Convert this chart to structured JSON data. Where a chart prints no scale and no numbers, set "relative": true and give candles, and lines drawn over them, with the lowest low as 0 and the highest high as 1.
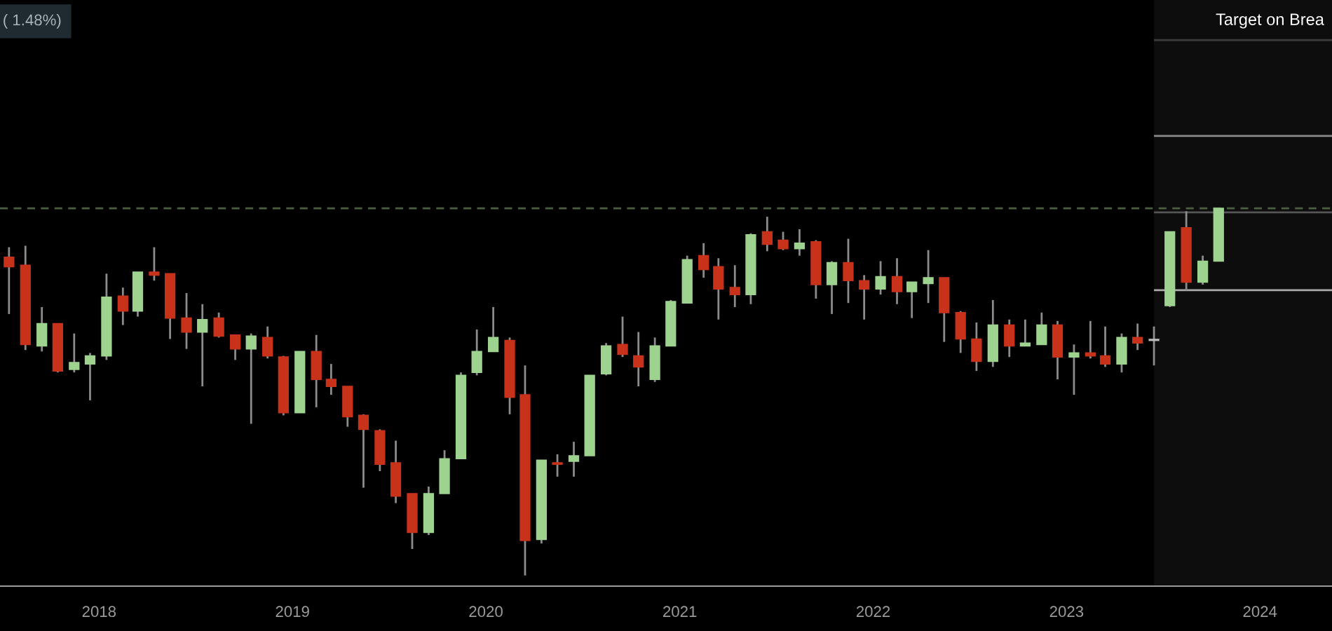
{
  "chart_data": {
    "type": "candlestick",
    "relative": true,
    "annotations": [
      "( 1.48%)"
    ],
    "x": [
      "2017-07-15",
      "2017-08-15",
      "2017-09-15",
      "2017-10-15",
      "2017-11-15",
      "2017-12-15",
      "2018-01-15",
      "2018-02-15",
      "2018-03-15",
      "2018-04-15",
      "2018-05-15",
      "2018-06-15",
      "2018-07-15",
      "2018-08-15",
      "2018-09-15",
      "2018-10-15",
      "2018-11-15",
      "2018-12-15",
      "2019-01-15",
      "2019-02-15",
      "2019-03-15",
      "2019-04-15",
      "2019-05-15",
      "2019-06-15",
      "2019-07-15",
      "2019-08-15",
      "2019-09-15",
      "2019-10-15",
      "2019-11-15",
      "2019-12-15",
      "2020-01-15",
      "2020-02-15",
      "2020-03-15",
      "2020-04-15",
      "2020-05-15",
      "2020-06-15",
      "2020-07-15",
      "2020-08-15",
      "2020-09-15",
      "2020-10-15",
      "2020-11-15",
      "2020-12-15",
      "2021-01-15",
      "2021-02-15",
      "2021-03-15",
      "2021-04-15",
      "2021-05-15",
      "2021-06-15",
      "2021-07-15",
      "2021-08-15",
      "2021-09-15",
      "2021-10-15",
      "2021-11-15",
      "2021-12-15",
      "2022-01-15",
      "2022-02-15",
      "2022-03-15",
      "2022-04-15",
      "2022-05-15",
      "2022-06-15",
      "2022-07-15",
      "2022-08-15",
      "2022-09-15",
      "2022-10-15",
      "2022-11-15",
      "2022-12-15",
      "2023-01-15",
      "2023-02-15",
      "2023-03-15",
      "2023-04-15",
      "2023-05-15",
      "2023-06-15",
      "2023-07-15",
      "2023-08-15",
      "2023-09-15",
      "2023-10-15"
    ],
    "ohlc": [
      [
        0.867,
        0.894,
        0.712,
        0.841
      ],
      [
        0.845,
        0.898,
        0.614,
        0.629
      ],
      [
        0.625,
        0.731,
        0.61,
        0.686
      ],
      [
        0.686,
        0.686,
        0.553,
        0.557
      ],
      [
        0.561,
        0.659,
        0.553,
        0.58
      ],
      [
        0.576,
        0.606,
        0.477,
        0.598
      ],
      [
        0.598,
        0.822,
        0.587,
        0.758
      ],
      [
        0.761,
        0.784,
        0.682,
        0.72
      ],
      [
        0.72,
        0.826,
        0.705,
        0.826
      ],
      [
        0.826,
        0.894,
        0.803,
        0.818
      ],
      [
        0.822,
        0.822,
        0.644,
        0.701
      ],
      [
        0.701,
        0.769,
        0.617,
        0.663
      ],
      [
        0.663,
        0.739,
        0.515,
        0.697
      ],
      [
        0.701,
        0.716,
        0.648,
        0.652
      ],
      [
        0.655,
        0.655,
        0.587,
        0.617
      ],
      [
        0.617,
        0.659,
        0.413,
        0.652
      ],
      [
        0.648,
        0.678,
        0.591,
        0.598
      ],
      [
        0.595,
        0.598,
        0.436,
        0.443
      ],
      [
        0.443,
        0.61,
        0.443,
        0.61
      ],
      [
        0.61,
        0.655,
        0.458,
        0.534
      ],
      [
        0.534,
        0.576,
        0.492,
        0.515
      ],
      [
        0.515,
        0.515,
        0.405,
        0.432
      ],
      [
        0.436,
        0.439,
        0.239,
        0.398
      ],
      [
        0.394,
        0.398,
        0.284,
        0.303
      ],
      [
        0.307,
        0.367,
        0.197,
        0.216
      ],
      [
        0.223,
        0.223,
        0.072,
        0.117
      ],
      [
        0.117,
        0.242,
        0.11,
        0.223
      ],
      [
        0.223,
        0.341,
        0.223,
        0.318
      ],
      [
        0.318,
        0.553,
        0.318,
        0.545
      ],
      [
        0.553,
        0.67,
        0.545,
        0.61
      ],
      [
        0.61,
        0.731,
        0.61,
        0.648
      ],
      [
        0.64,
        0.648,
        0.439,
        0.485
      ],
      [
        0.492,
        0.572,
        0,
        0.095
      ],
      [
        0.098,
        0.314,
        0.087,
        0.314
      ],
      [
        0.307,
        0.33,
        0.269,
        0.303
      ],
      [
        0.311,
        0.364,
        0.269,
        0.326
      ],
      [
        0.326,
        0.545,
        0.326,
        0.545
      ],
      [
        0.549,
        0.633,
        0.545,
        0.625
      ],
      [
        0.629,
        0.705,
        0.595,
        0.602
      ],
      [
        0.598,
        0.663,
        0.515,
        0.568
      ],
      [
        0.534,
        0.648,
        0.527,
        0.625
      ],
      [
        0.625,
        0.75,
        0.625,
        0.746
      ],
      [
        0.742,
        0.871,
        0.742,
        0.86
      ],
      [
        0.871,
        0.905,
        0.811,
        0.833
      ],
      [
        0.841,
        0.864,
        0.697,
        0.78
      ],
      [
        0.784,
        0.845,
        0.731,
        0.765
      ],
      [
        0.765,
        0.932,
        0.739,
        0.928
      ],
      [
        0.936,
        0.977,
        0.883,
        0.902
      ],
      [
        0.913,
        0.936,
        0.886,
        0.89
      ],
      [
        0.89,
        0.943,
        0.871,
        0.905
      ],
      [
        0.909,
        0.913,
        0.754,
        0.792
      ],
      [
        0.792,
        0.856,
        0.712,
        0.852
      ],
      [
        0.852,
        0.917,
        0.742,
        0.803
      ],
      [
        0.803,
        0.818,
        0.697,
        0.78
      ],
      [
        0.78,
        0.856,
        0.765,
        0.814
      ],
      [
        0.814,
        0.864,
        0.739,
        0.773
      ],
      [
        0.773,
        0.799,
        0.701,
        0.799
      ],
      [
        0.795,
        0.886,
        0.742,
        0.811
      ],
      [
        0.811,
        0.811,
        0.636,
        0.716
      ],
      [
        0.716,
        0.72,
        0.606,
        0.644
      ],
      [
        0.644,
        0.689,
        0.557,
        0.583
      ],
      [
        0.583,
        0.75,
        0.568,
        0.682
      ],
      [
        0.682,
        0.697,
        0.595,
        0.625
      ],
      [
        0.625,
        0.697,
        0.625,
        0.633
      ],
      [
        0.629,
        0.716,
        0.629,
        0.682
      ],
      [
        0.682,
        0.693,
        0.534,
        0.595
      ],
      [
        0.595,
        0.629,
        0.492,
        0.606
      ],
      [
        0.606,
        0.693,
        0.591,
        0.598
      ],
      [
        0.598,
        0.678,
        0.568,
        0.576
      ],
      [
        0.576,
        0.659,
        0.553,
        0.648
      ],
      [
        0.648,
        0.686,
        0.614,
        0.633
      ],
      [
        0.64,
        0.678,
        0.572,
        0.64
      ],
      [
        0.735,
        0.936,
        0.731,
        0.936
      ],
      [
        0.947,
        0.992,
        0.777,
        0.799
      ],
      [
        0.799,
        0.871,
        0.792,
        0.856
      ],
      [
        0.856,
        1,
        0.856,
        1
      ]
    ],
    "colors": [
      "#c8321a",
      "#c8321a",
      "#9ed28f",
      "#c8321a",
      "#9ed28f",
      "#9ed28f",
      "#9ed28f",
      "#c8321a",
      "#9ed28f",
      "#c8321a",
      "#c8321a",
      "#c8321a",
      "#9ed28f",
      "#c8321a",
      "#c8321a",
      "#9ed28f",
      "#c8321a",
      "#c8321a",
      "#9ed28f",
      "#c8321a",
      "#c8321a",
      "#c8321a",
      "#c8321a",
      "#c8321a",
      "#c8321a",
      "#c8321a",
      "#9ed28f",
      "#9ed28f",
      "#9ed28f",
      "#9ed28f",
      "#9ed28f",
      "#c8321a",
      "#c8321a",
      "#9ed28f",
      "#c8321a",
      "#9ed28f",
      "#9ed28f",
      "#9ed28f",
      "#c8321a",
      "#c8321a",
      "#9ed28f",
      "#9ed28f",
      "#9ed28f",
      "#c8321a",
      "#c8321a",
      "#c8321a",
      "#9ed28f",
      "#c8321a",
      "#c8321a",
      "#9ed28f",
      "#c8321a",
      "#9ed28f",
      "#c8321a",
      "#c8321a",
      "#9ed28f",
      "#c8321a",
      "#9ed28f",
      "#9ed28f",
      "#c8321a",
      "#c8321a",
      "#c8321a",
      "#9ed28f",
      "#c8321a",
      "#9ed28f",
      "#9ed28f",
      "#c8321a",
      "#9ed28f",
      "#c8321a",
      "#c8321a",
      "#9ed28f",
      "#c8321a",
      "#bbbbbb",
      "#9ed28f",
      "#c8321a",
      "#9ed28f",
      "#9ed28f"
    ],
    "xlim": [
      "2017-06-28",
      "2024-05-16"
    ],
    "xticks": [
      "2018",
      "2019",
      "2020",
      "2021",
      "2022",
      "2023",
      "2024"
    ],
    "ref_lines": [
      {
        "axis": "y",
        "value": 1.0,
        "line_style": "dashed",
        "color": "#4b5e3f"
      },
      {
        "axis": "y",
        "value": 1.458,
        "label": "Target on Brea",
        "color": "#3a3a3a"
      },
      {
        "axis": "y",
        "value": 1.197,
        "color": "#8a8a8a"
      },
      {
        "axis": "y",
        "value": 0.989,
        "color": "#555555"
      },
      {
        "axis": "y",
        "value": 0.777,
        "color": "#aaaaaa"
      }
    ],
    "bands": [
      {
        "axis": "x",
        "from": "2023-06-15",
        "to": "2024-05-16",
        "color": "#0d0d0d"
      }
    ],
    "grid": false
  }
}
